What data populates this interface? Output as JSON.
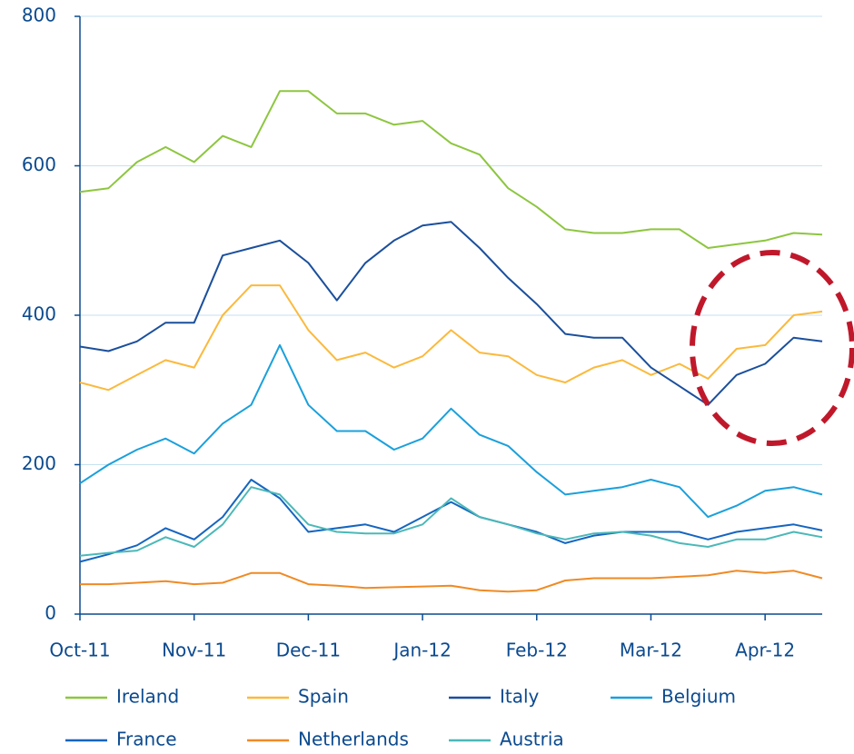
{
  "chart_data": {
    "type": "line",
    "categories": [
      "Oct-11",
      null,
      null,
      null,
      "Nov-11",
      null,
      null,
      null,
      "Dec-11",
      null,
      null,
      null,
      "Jan-12",
      null,
      null,
      null,
      "Feb-12",
      null,
      null,
      null,
      "Mar-12",
      null,
      null,
      null,
      "Apr-12",
      null,
      null
    ],
    "series": [
      {
        "name": "Ireland",
        "color": "#8dc63f",
        "values": [
          565,
          570,
          605,
          625,
          605,
          640,
          625,
          700,
          700,
          670,
          670,
          655,
          660,
          630,
          615,
          570,
          545,
          515,
          510,
          510,
          515,
          515,
          490,
          495,
          500,
          510,
          508
        ]
      },
      {
        "name": "Spain",
        "color": "#fbb93c",
        "values": [
          310,
          300,
          320,
          340,
          330,
          400,
          440,
          440,
          380,
          340,
          350,
          330,
          345,
          380,
          350,
          345,
          320,
          310,
          330,
          340,
          320,
          335,
          315,
          355,
          360,
          400,
          405
        ]
      },
      {
        "name": "Italy",
        "color": "#1b4f9c",
        "values": [
          358,
          352,
          365,
          390,
          390,
          480,
          490,
          500,
          470,
          420,
          470,
          500,
          520,
          525,
          490,
          450,
          415,
          375,
          370,
          370,
          330,
          305,
          280,
          320,
          335,
          370,
          365
        ]
      },
      {
        "name": "Belgium",
        "color": "#1aa0dc",
        "values": [
          175,
          200,
          220,
          235,
          215,
          255,
          280,
          360,
          280,
          245,
          245,
          220,
          235,
          275,
          240,
          225,
          190,
          160,
          165,
          170,
          180,
          170,
          130,
          145,
          165,
          170,
          160
        ]
      },
      {
        "name": "France",
        "color": "#1565c0",
        "values": [
          70,
          80,
          92,
          115,
          100,
          130,
          180,
          155,
          110,
          115,
          120,
          110,
          130,
          150,
          130,
          120,
          110,
          95,
          105,
          110,
          110,
          110,
          100,
          110,
          115,
          120,
          112
        ]
      },
      {
        "name": "Netherlands",
        "color": "#f08a24",
        "values": [
          40,
          40,
          42,
          44,
          40,
          42,
          55,
          55,
          40,
          38,
          35,
          36,
          37,
          38,
          32,
          30,
          32,
          45,
          48,
          48,
          48,
          50,
          52,
          58,
          55,
          58,
          48
        ]
      },
      {
        "name": "Austria",
        "color": "#4bb8b8",
        "values": [
          78,
          82,
          85,
          103,
          90,
          120,
          170,
          160,
          120,
          110,
          108,
          108,
          120,
          155,
          130,
          120,
          108,
          100,
          108,
          110,
          105,
          95,
          90,
          100,
          100,
          110,
          103
        ]
      }
    ],
    "ylim": [
      0,
      800
    ],
    "yticks": [
      0,
      200,
      400,
      600,
      800
    ],
    "grid": true
  }
}
